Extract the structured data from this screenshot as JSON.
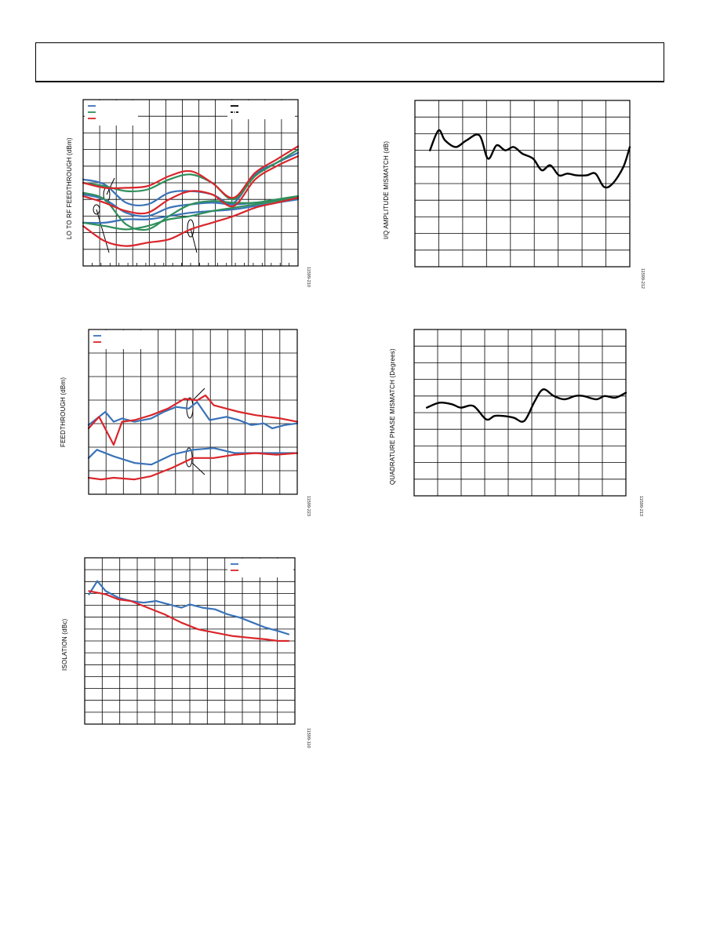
{
  "colors": {
    "blue": "#3a73b8",
    "green": "#2f8f5b",
    "red": "#d9262b",
    "black": "#000000",
    "grid": "#000000"
  },
  "chart_data": [
    {
      "type": "line",
      "ylabel": "LO TO RF FEEDTHROUGH (dBm)",
      "figure_id": "11599-210",
      "x_range": [
        0,
        1
      ],
      "ylim": [
        0,
        1
      ],
      "grid": true,
      "legend_placement": "top-left and top-right (labels illegible)",
      "series": [
        {
          "color": "blue",
          "x": [
            0,
            0.1,
            0.2,
            0.3,
            0.4,
            0.5,
            0.6,
            0.7,
            0.8,
            0.9,
            1.0
          ],
          "values": [
            0.52,
            0.49,
            0.38,
            0.37,
            0.44,
            0.45,
            0.43,
            0.38,
            0.55,
            0.62,
            0.68
          ]
        },
        {
          "color": "blue",
          "x": [
            0,
            0.1,
            0.2,
            0.3,
            0.4,
            0.5,
            0.6,
            0.7,
            0.8,
            0.9,
            1.0
          ],
          "values": [
            0.43,
            0.4,
            0.32,
            0.3,
            0.35,
            0.37,
            0.38,
            0.37,
            0.38,
            0.39,
            0.41
          ]
        },
        {
          "color": "blue",
          "x": [
            0,
            0.1,
            0.2,
            0.3,
            0.4,
            0.5,
            0.6,
            0.7,
            0.8,
            0.9,
            1.0
          ],
          "values": [
            0.26,
            0.26,
            0.28,
            0.28,
            0.3,
            0.32,
            0.33,
            0.34,
            0.36,
            0.38,
            0.4
          ]
        },
        {
          "color": "green",
          "x": [
            0,
            0.1,
            0.2,
            0.3,
            0.4,
            0.5,
            0.6,
            0.7,
            0.8,
            0.9,
            1.0
          ],
          "values": [
            0.5,
            0.48,
            0.45,
            0.46,
            0.52,
            0.55,
            0.5,
            0.4,
            0.54,
            0.62,
            0.7
          ]
        },
        {
          "color": "green",
          "x": [
            0,
            0.1,
            0.2,
            0.3,
            0.4,
            0.5,
            0.6,
            0.7,
            0.8,
            0.9,
            1.0
          ],
          "values": [
            0.44,
            0.4,
            0.25,
            0.22,
            0.3,
            0.37,
            0.39,
            0.38,
            0.38,
            0.4,
            0.42
          ]
        },
        {
          "color": "green",
          "x": [
            0,
            0.1,
            0.2,
            0.3,
            0.4,
            0.5,
            0.6,
            0.7,
            0.8,
            0.9,
            1.0
          ],
          "values": [
            0.26,
            0.24,
            0.22,
            0.24,
            0.28,
            0.3,
            0.33,
            0.35,
            0.37,
            0.39,
            0.41
          ]
        },
        {
          "color": "red",
          "x": [
            0,
            0.1,
            0.2,
            0.3,
            0.4,
            0.5,
            0.6,
            0.7,
            0.8,
            0.9,
            1.0
          ],
          "values": [
            0.5,
            0.47,
            0.47,
            0.48,
            0.54,
            0.57,
            0.5,
            0.41,
            0.56,
            0.64,
            0.72
          ]
        },
        {
          "color": "red",
          "x": [
            0,
            0.1,
            0.2,
            0.3,
            0.4,
            0.5,
            0.6,
            0.7,
            0.8,
            0.9,
            1.0
          ],
          "values": [
            0.42,
            0.38,
            0.33,
            0.32,
            0.4,
            0.45,
            0.43,
            0.36,
            0.52,
            0.6,
            0.66
          ]
        },
        {
          "color": "red",
          "x": [
            0,
            0.1,
            0.2,
            0.3,
            0.4,
            0.5,
            0.6,
            0.7,
            0.8,
            0.9,
            1.0
          ],
          "values": [
            0.24,
            0.15,
            0.12,
            0.14,
            0.16,
            0.22,
            0.26,
            0.3,
            0.35,
            0.38,
            0.41
          ]
        }
      ]
    },
    {
      "type": "line",
      "ylabel": "I/Q AMPLITUDE MISMATCH (dB)",
      "figure_id": "11599-212",
      "x_range": [
        0,
        1
      ],
      "ylim": [
        0,
        1
      ],
      "grid": true,
      "series": [
        {
          "color": "black",
          "x": [
            0.07,
            0.11,
            0.14,
            0.19,
            0.24,
            0.3,
            0.34,
            0.38,
            0.42,
            0.46,
            0.5,
            0.55,
            0.59,
            0.63,
            0.67,
            0.71,
            0.75,
            0.8,
            0.84,
            0.88,
            0.92,
            0.97,
            1.0
          ],
          "values": [
            0.7,
            0.82,
            0.76,
            0.72,
            0.76,
            0.79,
            0.65,
            0.73,
            0.7,
            0.72,
            0.68,
            0.65,
            0.58,
            0.61,
            0.55,
            0.56,
            0.55,
            0.55,
            0.56,
            0.48,
            0.5,
            0.6,
            0.72
          ]
        }
      ]
    },
    {
      "type": "line",
      "ylabel": "FEEDTHROUGH (dBm)",
      "figure_id": "11599-223",
      "x_range": [
        0,
        1
      ],
      "ylim": [
        0,
        1
      ],
      "grid": true,
      "legend_placement": "top-left (labels illegible)",
      "series": [
        {
          "color": "blue",
          "x": [
            0,
            0.08,
            0.12,
            0.16,
            0.22,
            0.3,
            0.36,
            0.42,
            0.48,
            0.52,
            0.58,
            0.66,
            0.72,
            0.78,
            0.84,
            0.88,
            0.94,
            1.0
          ],
          "values": [
            0.42,
            0.5,
            0.44,
            0.46,
            0.44,
            0.46,
            0.5,
            0.53,
            0.52,
            0.56,
            0.45,
            0.47,
            0.45,
            0.42,
            0.43,
            0.4,
            0.42,
            0.43
          ]
        },
        {
          "color": "red",
          "x": [
            0,
            0.05,
            0.12,
            0.16,
            0.22,
            0.3,
            0.38,
            0.46,
            0.52,
            0.56,
            0.6,
            0.66,
            0.72,
            0.8,
            0.86,
            0.92,
            1.0
          ],
          "values": [
            0.4,
            0.47,
            0.3,
            0.44,
            0.45,
            0.48,
            0.52,
            0.58,
            0.57,
            0.6,
            0.54,
            0.52,
            0.5,
            0.48,
            0.47,
            0.46,
            0.44
          ]
        },
        {
          "color": "blue",
          "x": [
            0,
            0.04,
            0.12,
            0.22,
            0.3,
            0.4,
            0.5,
            0.6,
            0.7,
            0.8,
            0.9,
            1.0
          ],
          "values": [
            0.22,
            0.27,
            0.23,
            0.19,
            0.18,
            0.24,
            0.27,
            0.28,
            0.25,
            0.25,
            0.25,
            0.25
          ]
        },
        {
          "color": "red",
          "x": [
            0,
            0.06,
            0.12,
            0.22,
            0.3,
            0.4,
            0.5,
            0.6,
            0.7,
            0.8,
            0.9,
            1.0
          ],
          "values": [
            0.1,
            0.09,
            0.1,
            0.09,
            0.11,
            0.16,
            0.22,
            0.22,
            0.24,
            0.25,
            0.24,
            0.25
          ]
        }
      ]
    },
    {
      "type": "line",
      "ylabel": "QUADRATURE PHASE MISMATCH (Degrees)",
      "figure_id": "11599-213",
      "x_range": [
        0,
        1
      ],
      "ylim": [
        0,
        1
      ],
      "grid": true,
      "series": [
        {
          "color": "black",
          "x": [
            0.06,
            0.12,
            0.18,
            0.22,
            0.28,
            0.34,
            0.38,
            0.42,
            0.47,
            0.52,
            0.57,
            0.61,
            0.66,
            0.71,
            0.76,
            0.8,
            0.86,
            0.9,
            0.95,
            1.0
          ],
          "values": [
            0.53,
            0.56,
            0.55,
            0.53,
            0.54,
            0.46,
            0.48,
            0.48,
            0.47,
            0.45,
            0.57,
            0.64,
            0.6,
            0.58,
            0.6,
            0.6,
            0.58,
            0.6,
            0.59,
            0.62
          ]
        }
      ]
    },
    {
      "type": "line",
      "ylabel": "ISOLATION (dBc)",
      "figure_id": "11599-110",
      "x_range": [
        0,
        1
      ],
      "ylim": [
        0,
        1
      ],
      "grid": true,
      "legend_placement": "top-right (labels illegible)",
      "series": [
        {
          "color": "blue",
          "x": [
            0.02,
            0.06,
            0.1,
            0.16,
            0.22,
            0.28,
            0.34,
            0.4,
            0.46,
            0.5,
            0.56,
            0.62,
            0.68,
            0.74,
            0.8,
            0.86,
            0.92,
            0.97
          ],
          "values": [
            0.78,
            0.86,
            0.8,
            0.76,
            0.74,
            0.73,
            0.74,
            0.72,
            0.7,
            0.72,
            0.7,
            0.69,
            0.66,
            0.64,
            0.61,
            0.58,
            0.56,
            0.54
          ]
        },
        {
          "color": "red",
          "x": [
            0.02,
            0.1,
            0.16,
            0.22,
            0.3,
            0.38,
            0.46,
            0.54,
            0.62,
            0.7,
            0.78,
            0.86,
            0.92,
            0.97
          ],
          "values": [
            0.8,
            0.78,
            0.75,
            0.74,
            0.7,
            0.66,
            0.61,
            0.57,
            0.55,
            0.53,
            0.52,
            0.51,
            0.5,
            0.5
          ]
        }
      ]
    }
  ]
}
